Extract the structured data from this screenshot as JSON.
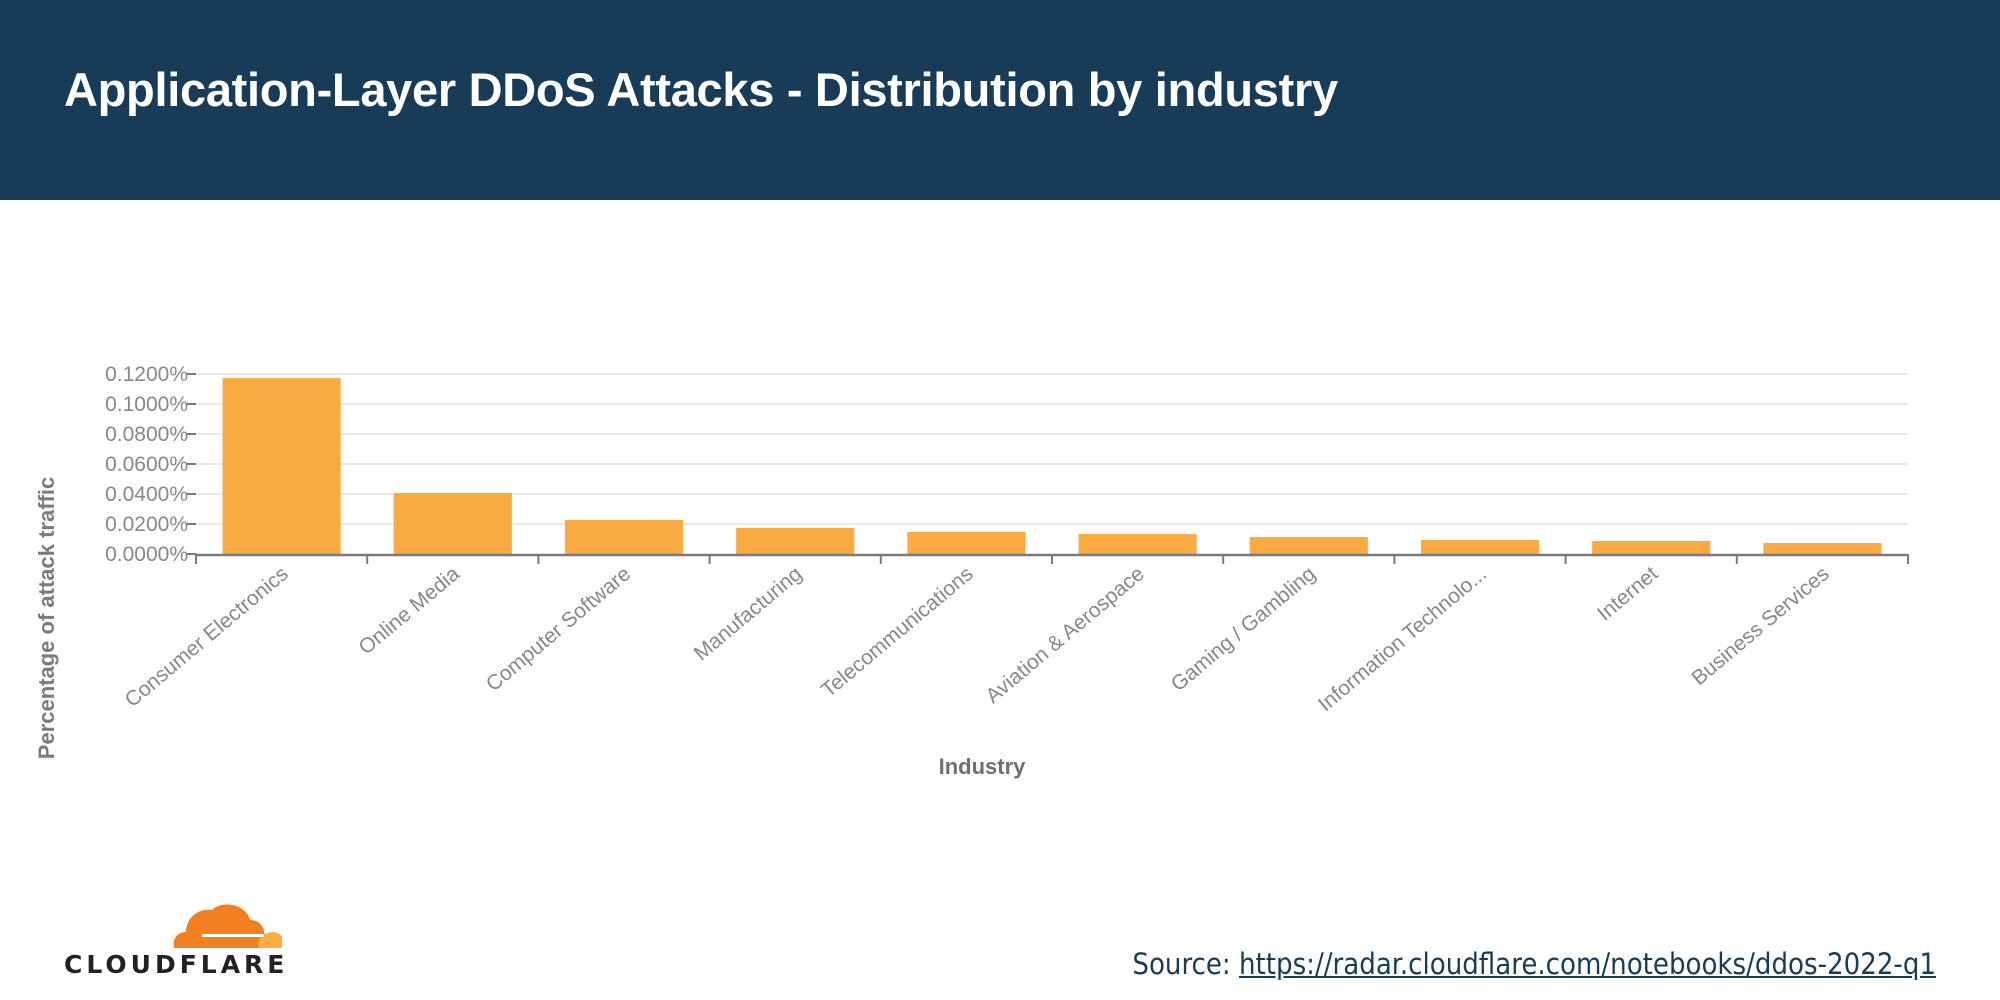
{
  "header": {
    "title": "Application-Layer DDoS Attacks - Distribution by industry"
  },
  "colors": {
    "header_bg": "#183c58",
    "bar": "#f9ab41",
    "axis": "#7a7a80",
    "grid": "#e6e9f0",
    "tick_text": "#888888",
    "logo_orange_dark": "#f38020",
    "logo_orange_light": "#faae40"
  },
  "chart_data": {
    "type": "bar",
    "title": "Application-Layer DDoS Attacks - Distribution by industry",
    "xlabel": "Industry",
    "ylabel": "Percentage of attack traffic",
    "categories": [
      "Consumer Electronics",
      "Online Media",
      "Computer Software",
      "Manufacturing",
      "Telecommunications",
      "Aviation & Aerospace",
      "Gaming / Gambling",
      "Information Technolo...",
      "Internet",
      "Business Services"
    ],
    "values": [
      0.1173,
      0.0407,
      0.0227,
      0.0173,
      0.0147,
      0.0133,
      0.0113,
      0.0093,
      0.0087,
      0.0073
    ],
    "value_unit": "%",
    "ylim": [
      0,
      0.12
    ],
    "yticks": [
      0,
      0.02,
      0.04,
      0.06,
      0.08,
      0.1,
      0.12
    ],
    "ytick_labels": [
      "0.0000%",
      "0.0200%",
      "0.0400%",
      "0.0600%",
      "0.0800%",
      "0.1000%",
      "0.1200%"
    ],
    "grid": true,
    "legend": "none"
  },
  "footer": {
    "logo_text": "CLOUDFLARE",
    "source_label": "Source: ",
    "source_link": "https://radar.cloudflare.com/notebooks/ddos-2022-q1"
  }
}
